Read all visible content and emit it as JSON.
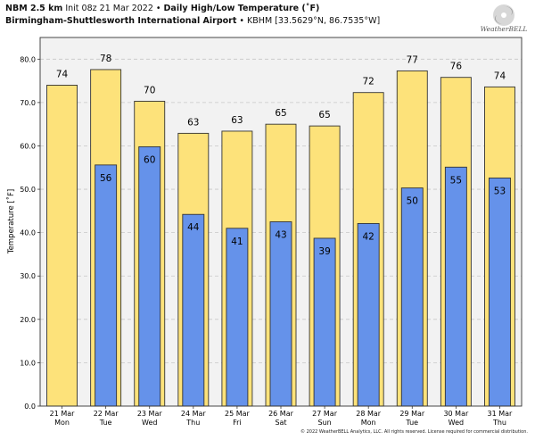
{
  "header": {
    "model": "NBM 2.5 km",
    "init": "Init 08z 21 Mar 2022",
    "sep": "•",
    "title": "Daily High/Low Temperature (˚F)",
    "station": "Birmingham-Shuttlesworth International Airport",
    "station_code": "KBHM [33.5629°N, 86.7535°W]"
  },
  "logo": {
    "text": "WeatherBELL",
    "icon": "hurricane-icon"
  },
  "copyright": "© 2022 WeatherBELL Analytics, LLC. All rights reserved. License required for commercial distribution.",
  "chart_data": {
    "type": "bar",
    "title": "Daily High/Low Temperature (˚F)",
    "xlabel": "",
    "ylabel": "Temperature [˚F]",
    "ylim": [
      0,
      85
    ],
    "yticks": [
      "0.0",
      "10.0",
      "20.0",
      "30.0",
      "40.0",
      "50.0",
      "60.0",
      "70.0",
      "80.0"
    ],
    "grid": true,
    "categories": [
      {
        "date": "21 Mar",
        "day": "Mon"
      },
      {
        "date": "22 Mar",
        "day": "Tue"
      },
      {
        "date": "23 Mar",
        "day": "Wed"
      },
      {
        "date": "24 Mar",
        "day": "Thu"
      },
      {
        "date": "25 Mar",
        "day": "Fri"
      },
      {
        "date": "26 Mar",
        "day": "Sat"
      },
      {
        "date": "27 Mar",
        "day": "Sun"
      },
      {
        "date": "28 Mar",
        "day": "Mon"
      },
      {
        "date": "29 Mar",
        "day": "Tue"
      },
      {
        "date": "30 Mar",
        "day": "Wed"
      },
      {
        "date": "31 Mar",
        "day": "Thu"
      }
    ],
    "series": [
      {
        "color": "#fde27a",
        "values": [
          74,
          77.6,
          70.3,
          62.9,
          63.4,
          65,
          64.6,
          72.3,
          77.3,
          75.8,
          73.6
        ],
        "labels": [
          "74",
          "78",
          "70",
          "63",
          "63",
          "65",
          "65",
          "72",
          "77",
          "76",
          "74"
        ]
      },
      {
        "color": "#6592ea",
        "values": [
          null,
          55.6,
          59.8,
          44.2,
          41,
          42.5,
          38.7,
          42.1,
          50.3,
          55.1,
          52.6
        ],
        "labels": [
          "",
          "56",
          "60",
          "44",
          "41",
          "43",
          "39",
          "42",
          "50",
          "55",
          "53"
        ]
      }
    ]
  }
}
